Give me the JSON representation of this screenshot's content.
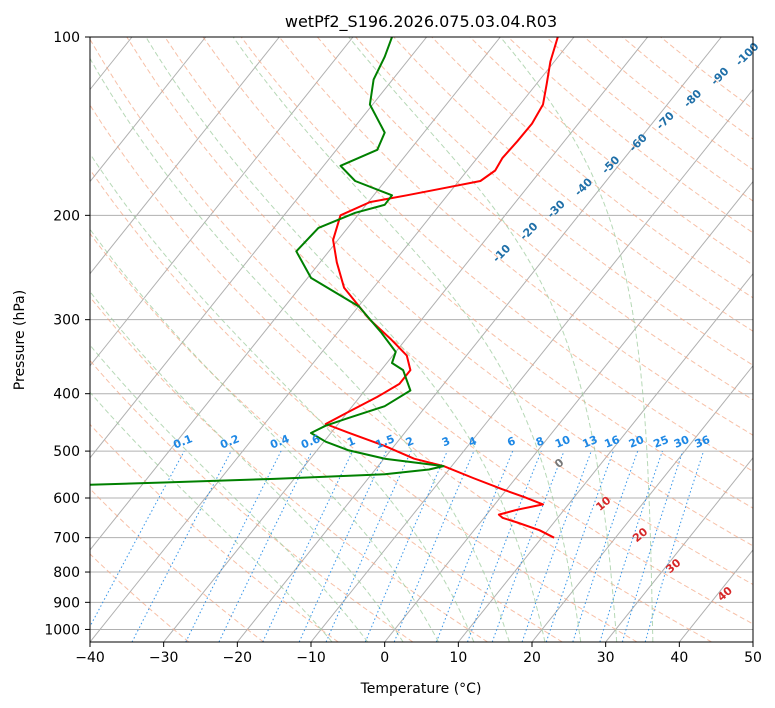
{
  "chart_data": {
    "type": "line",
    "subtype": "skew-t log-p",
    "title": "wetPf2_S196.2026.075.03.04.R03",
    "xlabel": "Temperature (°C)",
    "ylabel": "Pressure (hPa)",
    "xlim": [
      -40,
      50
    ],
    "ylim": [
      1050,
      100
    ],
    "x_ticks": [
      -40,
      -30,
      -20,
      -10,
      0,
      10,
      20,
      30,
      40,
      50
    ],
    "y_ticks": [
      100,
      200,
      300,
      400,
      500,
      600,
      700,
      800,
      900,
      1000
    ],
    "grid": true,
    "series": [
      {
        "name": "Temperature",
        "color": "#ff0000",
        "points": [
          [
            23,
            700
          ],
          [
            21,
            680
          ],
          [
            18,
            660
          ],
          [
            16,
            648
          ],
          [
            15.5,
            640
          ],
          [
            18,
            628
          ],
          [
            21.5,
            615
          ],
          [
            19,
            598
          ],
          [
            16,
            580
          ],
          [
            12,
            555
          ],
          [
            8,
            530
          ],
          [
            4,
            515
          ],
          [
            0,
            490
          ],
          [
            -5,
            465
          ],
          [
            -8,
            450
          ],
          [
            -5,
            430
          ],
          [
            -1,
            405
          ],
          [
            2,
            385
          ],
          [
            3.5,
            365
          ],
          [
            3,
            345
          ],
          [
            1,
            325
          ],
          [
            -2,
            300
          ],
          [
            -5.5,
            265
          ],
          [
            -6.5,
            240
          ],
          [
            -7,
            220
          ],
          [
            -6,
            200
          ],
          [
            -2,
            190
          ],
          [
            3,
            185
          ],
          [
            8,
            180
          ],
          [
            13,
            175
          ],
          [
            15,
            168
          ],
          [
            16,
            160
          ],
          [
            18,
            150
          ],
          [
            20,
            140
          ],
          [
            21.5,
            130
          ],
          [
            22,
            120
          ],
          [
            22.5,
            110
          ],
          [
            23.5,
            100
          ]
        ]
      },
      {
        "name": "Dewpoint",
        "color": "#008000",
        "points": [
          [
            -40,
            570
          ],
          [
            -30,
            565
          ],
          [
            -15,
            557
          ],
          [
            0,
            547
          ],
          [
            6,
            537
          ],
          [
            8,
            530
          ],
          [
            0,
            515
          ],
          [
            -5,
            498
          ],
          [
            -8,
            482
          ],
          [
            -10,
            466
          ],
          [
            -8,
            453
          ],
          [
            -5,
            440
          ],
          [
            0,
            420
          ],
          [
            3.5,
            395
          ],
          [
            2.5,
            365
          ],
          [
            1,
            355
          ],
          [
            1.5,
            340
          ],
          [
            -0.5,
            315
          ],
          [
            -3.5,
            285
          ],
          [
            -10,
            255
          ],
          [
            -12,
            230
          ],
          [
            -9,
            210
          ],
          [
            -4,
            198
          ],
          [
            0,
            192
          ],
          [
            1,
            185
          ],
          [
            -4,
            175
          ],
          [
            -6,
            165
          ],
          [
            -1,
            155
          ],
          [
            0,
            145
          ],
          [
            -2,
            130
          ],
          [
            -1.5,
            118
          ],
          [
            0,
            108
          ],
          [
            1,
            100
          ]
        ]
      }
    ],
    "dry_adiabat_labels": [
      "0",
      "10",
      "20",
      "30",
      "40"
    ],
    "mixing_ratio_labels": [
      "0.1",
      "0.2",
      "0.4",
      "0.6",
      "1",
      "1.5",
      "2",
      "3",
      "4",
      "6",
      "8",
      "10",
      "13",
      "16",
      "20",
      "25",
      "30",
      "36"
    ],
    "moist_adiabat_labels": [
      "-100",
      "-90",
      "-80",
      "-70",
      "-60",
      "-50",
      "-40",
      "-30",
      "-20",
      "-10"
    ]
  },
  "colors": {
    "temperature": "#ff0000",
    "dewpoint": "#008000",
    "dry_adiabat": "#f4a582",
    "moist_adiabat": "#9ecb9e",
    "mixing_ratio": "#1e88e5",
    "grid": "#b0b0b0"
  }
}
